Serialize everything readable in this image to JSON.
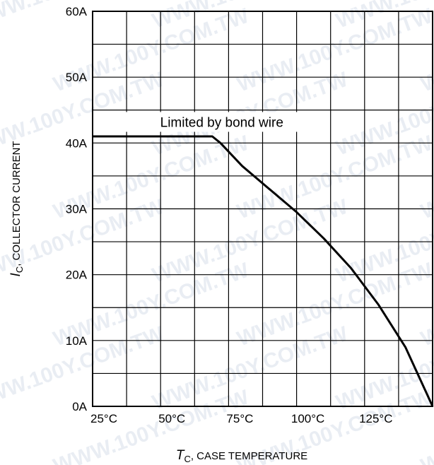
{
  "watermark": "WWW.100Y.COM.TW",
  "chart_data": {
    "type": "line",
    "x_axis": {
      "symbol": "T",
      "subscript": "C",
      "label_rest": ", CASE TEMPERATURE",
      "min": 25,
      "max": 150,
      "tick_labels": [
        {
          "value": 25,
          "label": "25°C"
        },
        {
          "value": 50,
          "label": "50°C"
        },
        {
          "value": 75,
          "label": "75°C"
        },
        {
          "value": 100,
          "label": "100°C"
        },
        {
          "value": 125,
          "label": "125°C"
        }
      ]
    },
    "y_axis": {
      "symbol": "I",
      "subscript": "C",
      "label_rest": ", COLLECTOR CURRENT",
      "min": 0,
      "max": 60,
      "tick_labels": [
        {
          "value": 0,
          "label": "0A"
        },
        {
          "value": 10,
          "label": "10A"
        },
        {
          "value": 20,
          "label": "20A"
        },
        {
          "value": 30,
          "label": "30A"
        },
        {
          "value": 40,
          "label": "40A"
        },
        {
          "value": 50,
          "label": "50A"
        },
        {
          "value": 60,
          "label": "60A"
        }
      ]
    },
    "grid": {
      "x_divisions": 10,
      "y_divisions": 12
    },
    "annotation": {
      "text": "Limited by bond wire",
      "x": 72.5,
      "y": 43.2
    },
    "series": [
      {
        "color": "#000000",
        "x": [
          25,
          69,
          72,
          80,
          90,
          100,
          110,
          120,
          130,
          140,
          150
        ],
        "y": [
          41,
          41,
          40,
          36.5,
          33,
          29.5,
          25.5,
          21,
          15.5,
          9,
          0
        ]
      }
    ]
  }
}
